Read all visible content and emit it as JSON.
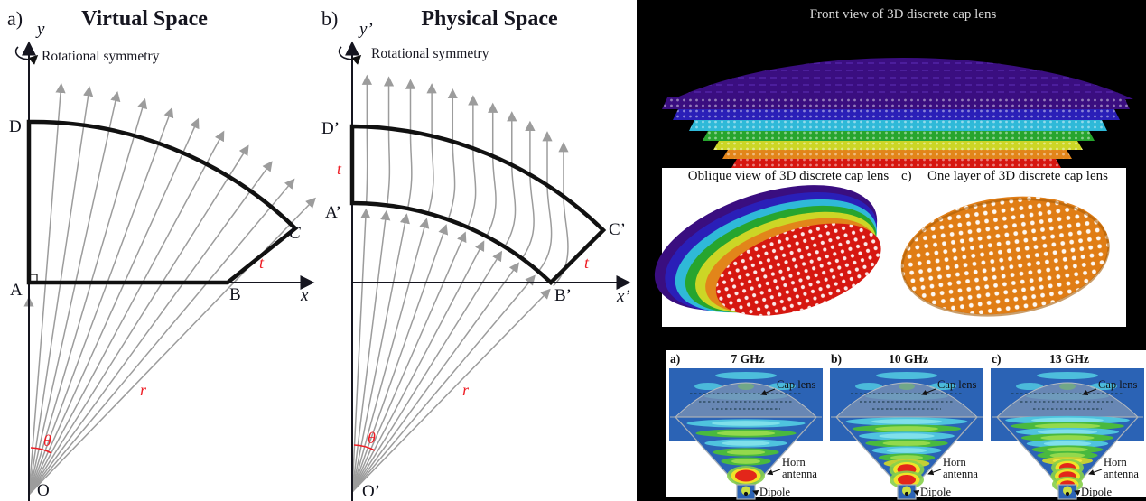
{
  "figure": {
    "virtual_space": {
      "panel_label": "a)",
      "title": "Virtual Space",
      "rotational_symmetry": "Rotational symmetry",
      "axis_x": "x",
      "axis_y": "y",
      "points": {
        "A": "A",
        "B": "B",
        "C": "C",
        "D": "D",
        "O": "O"
      },
      "labels": {
        "t": "t",
        "r": "r",
        "theta": "θ"
      }
    },
    "physical_space": {
      "panel_label": "b)",
      "title": "Physical Space",
      "rotational_symmetry": "Rotational symmetry",
      "axis_x": "x’",
      "axis_y": "y’",
      "points": {
        "A": "A’",
        "B": "B’",
        "C": "C’",
        "D": "D’",
        "O": "O’"
      },
      "labels": {
        "t_left": "t",
        "t_right": "t",
        "r": "r",
        "theta": "θ"
      }
    },
    "lens_views": {
      "front_title": "Front view of 3D discrete cap lens",
      "oblique_caption": "Oblique view of 3D discrete cap lens",
      "one_layer_prefix": "c)",
      "one_layer_caption": "One layer of 3D discrete cap lens",
      "layer_colors": [
        "#3a0e80",
        "#2a1fb8",
        "#2fb9d8",
        "#27a52e",
        "#ccd626",
        "#e2851a",
        "#d61710"
      ],
      "one_layer_color": "#e07d15"
    },
    "simulations": {
      "panels": [
        {
          "prefix": "a)",
          "prefix_faint": true,
          "freq": "7 GHz",
          "wave_rows": 5
        },
        {
          "prefix": "b)",
          "prefix_faint": false,
          "freq": "10 GHz",
          "wave_rows": 7
        },
        {
          "prefix": "c)",
          "prefix_faint": false,
          "freq": "13 GHz",
          "wave_rows": 9
        }
      ],
      "annotations": {
        "cap_lens": "Cap lens",
        "horn_line1": "Horn",
        "horn_line2": "antenna",
        "dipole": "Dipole"
      },
      "sim_bg_blue": "#2b63b5"
    },
    "colors": {
      "red_label": "#ee1d24",
      "ray_gray": "#9c9c9c",
      "right_panel_bg": "#000000"
    }
  }
}
